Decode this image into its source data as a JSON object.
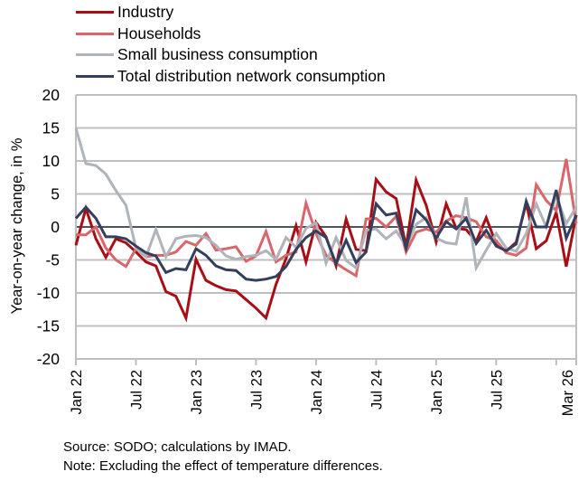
{
  "chart_data": {
    "type": "line",
    "title": "",
    "xlabel": "",
    "ylabel": "Year-on-year change, in %",
    "ylim": [
      -20,
      20
    ],
    "yticks": [
      20,
      15,
      10,
      5,
      0,
      -5,
      -10,
      -15,
      -20
    ],
    "ytick_labels": [
      "20",
      "15",
      "10",
      "5",
      "0",
      "-5",
      "-10",
      "-15",
      "-20"
    ],
    "grid": true,
    "legend_position": "top-left",
    "x": [
      "Jan 22",
      "Feb 22",
      "Mar 22",
      "Apr 22",
      "May 22",
      "Jun 22",
      "Jul 22",
      "Aug 22",
      "Sep 22",
      "Oct 22",
      "Nov 22",
      "Dec 22",
      "Jan 23",
      "Feb 23",
      "Mar 23",
      "Apr 23",
      "May 23",
      "Jun 23",
      "Jul 23",
      "Aug 23",
      "Sep 23",
      "Oct 23",
      "Nov 23",
      "Dec 23",
      "Jan 24",
      "Feb 24",
      "Mar 24",
      "Apr 24",
      "May 24",
      "Jun 24",
      "Jul 24",
      "Aug 24",
      "Sep 24",
      "Oct 24",
      "Nov 24",
      "Dec 24",
      "Jan 25",
      "Feb 25",
      "Mar 25",
      "Apr 25",
      "May 25",
      "Jun 25",
      "Jul 25",
      "Aug 25",
      "Sep 25",
      "Oct 25",
      "Nov 25",
      "Dec 25",
      "Jan 26",
      "Feb 26",
      "Mar 26"
    ],
    "xtick_labels": [
      {
        "label": "Jan 22",
        "index": 0
      },
      {
        "label": "Jul 22",
        "index": 6
      },
      {
        "label": "Jan 23",
        "index": 12
      },
      {
        "label": "Jul 23",
        "index": 18
      },
      {
        "label": "Jan 24",
        "index": 24
      },
      {
        "label": "Jul 24",
        "index": 30
      },
      {
        "label": "Jan 25",
        "index": 36
      },
      {
        "label": "Jul 25",
        "index": 42
      },
      {
        "label": "Mar 26",
        "index": 50
      }
    ],
    "series": [
      {
        "name": "Industry",
        "color": "#a50f15",
        "values": [
          -2.8,
          2.8,
          -1.8,
          -4.6,
          -1.8,
          -2.4,
          -3.8,
          -5.3,
          -5.9,
          -9.8,
          -10.5,
          -13.8,
          -4.9,
          -8.1,
          -8.9,
          -9.5,
          -9.7,
          -11.0,
          -12.3,
          -13.8,
          -8.7,
          -4.8,
          0.2,
          -5.3,
          0.7,
          -1.5,
          -5.9,
          1.2,
          -3.4,
          -3.6,
          7.2,
          5.3,
          4.3,
          -3.0,
          7.1,
          3.3,
          -2.3,
          3.5,
          -0.2,
          -0.4,
          -2.2,
          1.4,
          -2.6,
          -3.7,
          -2.3,
          3.6,
          -3.3,
          -2.1,
          2.2,
          -6.0,
          1.8
        ]
      },
      {
        "name": "Households",
        "color": "#d9666b",
        "values": [
          -1.2,
          -1.2,
          0.0,
          -3.2,
          -5.0,
          -6.0,
          -3.3,
          -4.5,
          -4.3,
          -4.3,
          -3.8,
          -2.2,
          -2.8,
          -1.0,
          -3.5,
          -3.3,
          -3.0,
          -5.2,
          -4.4,
          -0.7,
          -5.3,
          -4.3,
          -3.8,
          3.6,
          -1.0,
          -4.3,
          -5.5,
          -6.5,
          -7.4,
          1.2,
          1.3,
          0.0,
          1.6,
          -3.8,
          -0.8,
          -0.3,
          -0.8,
          0.9,
          1.7,
          1.4,
          0.8,
          -1.5,
          -2.1,
          -3.9,
          -4.3,
          -3.2,
          6.4,
          4.0,
          2.5,
          10.3,
          0.5
        ]
      },
      {
        "name": "Small business consumption",
        "color": "#aeb4ba",
        "values": [
          15.0,
          9.6,
          9.3,
          8.0,
          5.5,
          3.3,
          -3.2,
          -4.5,
          -0.4,
          -4.5,
          -1.8,
          -1.4,
          -1.3,
          -1.6,
          -2.8,
          -4.4,
          -4.9,
          -4.5,
          -4.3,
          -3.6,
          -4.9,
          -1.6,
          -3.1,
          -0.2,
          0.6,
          -5.5,
          -1.6,
          -5.1,
          -6.2,
          -0.5,
          -0.3,
          -1.8,
          -0.6,
          -2.9,
          0.4,
          1.4,
          -1.7,
          -2.4,
          -2.6,
          4.5,
          -6.2,
          -3.5,
          -1.0,
          -3.2,
          -3.7,
          -1.0,
          3.5,
          0.0,
          4.7,
          0.5,
          3.0
        ]
      },
      {
        "name": "Total distribution network consumption",
        "color": "#333f5c",
        "values": [
          1.3,
          3.0,
          1.3,
          -1.5,
          -1.5,
          -1.8,
          -2.9,
          -3.9,
          -4.4,
          -6.9,
          -6.3,
          -6.5,
          -3.3,
          -4.3,
          -5.9,
          -6.5,
          -6.6,
          -7.9,
          -8.1,
          -7.9,
          -7.5,
          -6.0,
          -3.4,
          -1.6,
          -0.6,
          -1.6,
          -5.6,
          -2.0,
          -5.4,
          -3.8,
          3.5,
          1.8,
          2.1,
          -3.2,
          2.6,
          1.1,
          -1.7,
          0.8,
          -0.3,
          1.3,
          -2.5,
          -0.5,
          -2.9,
          -3.6,
          -2.6,
          3.9,
          0.0,
          0.0,
          5.6,
          -1.7,
          1.8
        ]
      }
    ]
  },
  "legend": {
    "items": [
      {
        "label": "Industry",
        "color": "#a50f15"
      },
      {
        "label": "Households",
        "color": "#d9666b"
      },
      {
        "label": "Small business consumption",
        "color": "#aeb4ba"
      },
      {
        "label": "Total distribution network consumption",
        "color": "#333f5c"
      }
    ]
  },
  "notes": {
    "source": "Source: SODO; calculations by IMAD.",
    "note": "Note: Excluding the effect of temperature differences."
  }
}
